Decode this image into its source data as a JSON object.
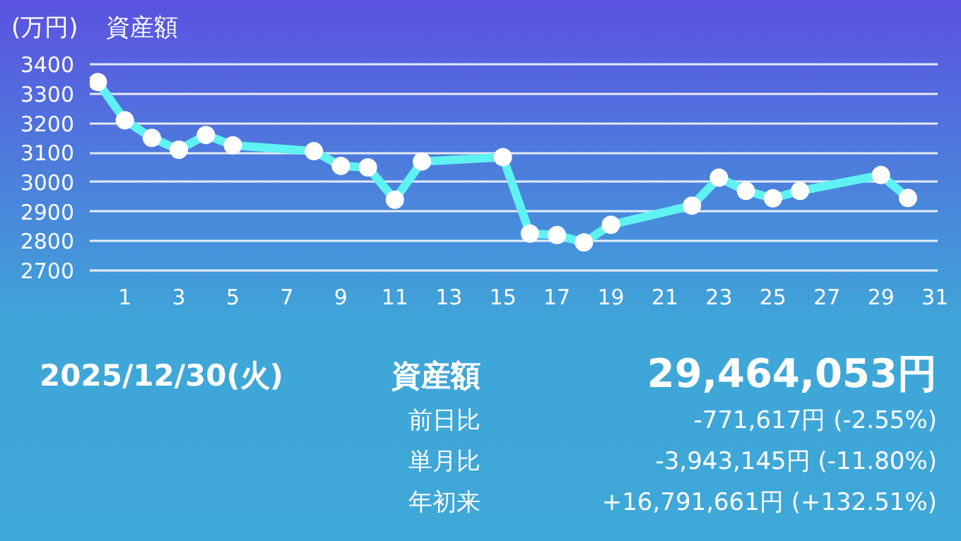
{
  "chart_data": {
    "type": "line",
    "title": "資産額",
    "ylabel": "(万円)",
    "x": [
      0,
      1,
      2,
      3,
      4,
      5,
      8,
      9,
      10,
      11,
      12,
      15,
      16,
      17,
      18,
      19,
      22,
      23,
      24,
      25,
      26,
      29,
      30
    ],
    "series": [
      {
        "color": "#5ef2f2",
        "values": [
          3340,
          3210,
          3150,
          3110,
          3160,
          3125,
          3105,
          3055,
          3050,
          2940,
          3070,
          3085,
          2825,
          2820,
          2795,
          2855,
          2920,
          3015,
          2970,
          2945,
          2970,
          3024,
          2946
        ]
      }
    ],
    "xlim": [
      -0.3,
      31.1
    ],
    "xticks": [
      1,
      3,
      5,
      7,
      9,
      11,
      13,
      15,
      17,
      19,
      21,
      23,
      25,
      27,
      29,
      31
    ],
    "ylim": [
      2690,
      3410
    ],
    "yticks": [
      2700,
      2800,
      2900,
      3000,
      3100,
      3200,
      3300,
      3400
    ],
    "grid": "y",
    "marker": "circle",
    "line_style": "solid",
    "annotations": [
      "2025/12/30(火)",
      "資産額",
      "29,464,053円",
      "前日比",
      "-771,617円 (-2.55%)",
      "単月比",
      "-3,943,145円 (-11.80%)",
      "年初来",
      "+16,791,661円 (+132.51%)"
    ]
  }
}
